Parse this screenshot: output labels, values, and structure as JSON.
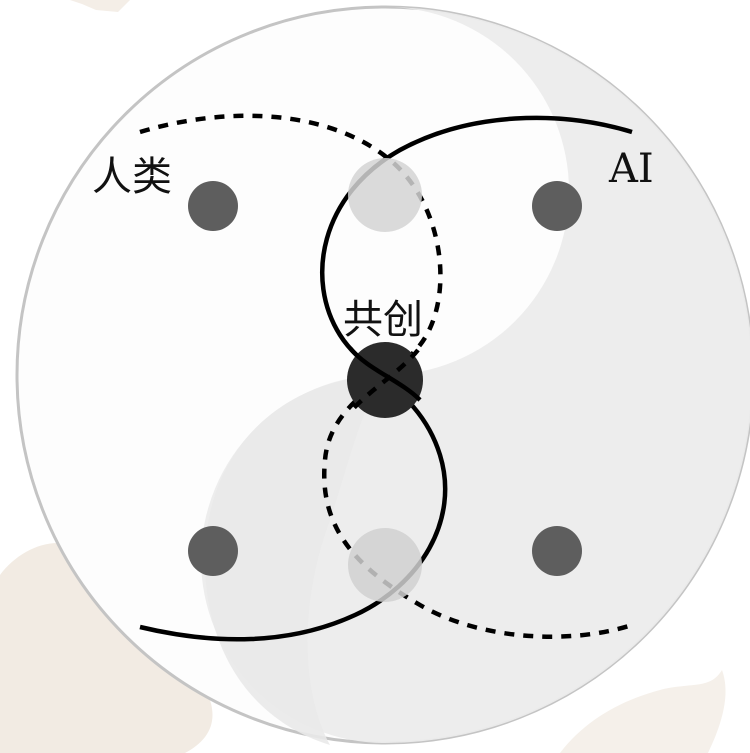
{
  "labels": {
    "human": "人类",
    "ai": "AI",
    "cocreation": "共创"
  },
  "colors": {
    "background": "#ffffff",
    "watermark": "#f2ebe3",
    "circle_fill": "#fdfdfd",
    "circle_stroke": "#c4c4c4",
    "swirl": "#ececec",
    "dot_dark": "#5e5e5e",
    "dot_light": "#d0d0d0",
    "center_dot": "#2b2b2b",
    "curve": "#000000"
  }
}
